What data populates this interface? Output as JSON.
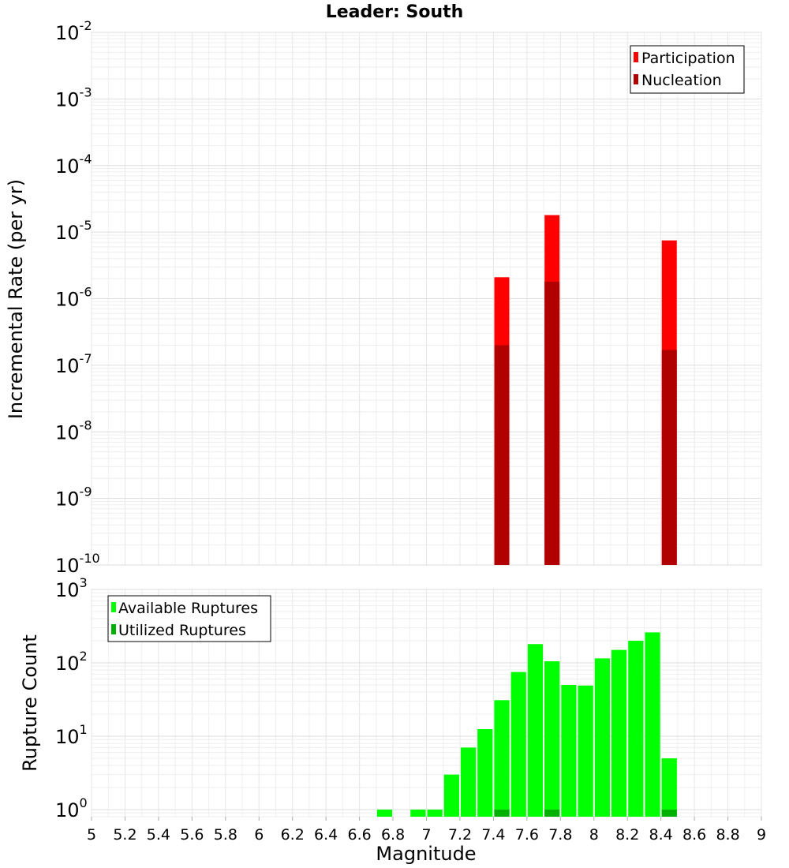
{
  "chart_data": [
    {
      "type": "bar",
      "title": "Leader: South",
      "xlabel": "",
      "ylabel": "Incremental Rate (per yr)",
      "yscale": "log",
      "ylim": [
        1e-10,
        0.01
      ],
      "xlim": [
        5,
        9
      ],
      "y_tick_labels": [
        {
          "base": "10",
          "exp": "-10"
        },
        {
          "base": "10",
          "exp": "-9"
        },
        {
          "base": "10",
          "exp": "-8"
        },
        {
          "base": "10",
          "exp": "-7"
        },
        {
          "base": "10",
          "exp": "-6"
        },
        {
          "base": "10",
          "exp": "-5"
        },
        {
          "base": "10",
          "exp": "-4"
        },
        {
          "base": "10",
          "exp": "-3"
        },
        {
          "base": "10",
          "exp": "-2"
        }
      ],
      "grid": true,
      "legend_position": "top-right",
      "series": [
        {
          "name": "Participation",
          "color": "#ff0000",
          "x": [
            7.45,
            7.75,
            8.45
          ],
          "values": [
            2.1e-06,
            1.8e-05,
            7.5e-06
          ]
        },
        {
          "name": "Nucleation",
          "color": "#b00000",
          "x": [
            7.45,
            7.75,
            8.45
          ],
          "values": [
            2e-07,
            1.8e-06,
            1.7e-07
          ]
        }
      ]
    },
    {
      "type": "bar",
      "xlabel": "Magnitude",
      "ylabel": "Rupture Count",
      "yscale": "log",
      "ylim": [
        0.8,
        1000
      ],
      "xlim": [
        5,
        9
      ],
      "x_tick_labels": [
        "5",
        "5.2",
        "5.4",
        "5.6",
        "5.8",
        "6",
        "6.2",
        "6.4",
        "6.6",
        "6.8",
        "7",
        "7.2",
        "7.4",
        "7.6",
        "7.8",
        "8",
        "8.2",
        "8.4",
        "8.6",
        "8.8",
        "9"
      ],
      "y_tick_labels": [
        {
          "base": "10",
          "exp": "0"
        },
        {
          "base": "10",
          "exp": "1"
        },
        {
          "base": "10",
          "exp": "2"
        },
        {
          "base": "10",
          "exp": "3"
        }
      ],
      "grid": true,
      "legend_position": "top-left",
      "series": [
        {
          "name": "Available Ruptures",
          "color": "#00ff00",
          "x": [
            6.75,
            6.95,
            7.05,
            7.15,
            7.25,
            7.35,
            7.45,
            7.55,
            7.65,
            7.75,
            7.85,
            7.95,
            8.05,
            8.15,
            8.25,
            8.35,
            8.45
          ],
          "values": [
            1,
            1,
            1,
            3,
            7,
            12.5,
            31,
            75,
            180,
            105,
            50,
            49,
            115,
            150,
            200,
            260,
            5
          ]
        },
        {
          "name": "Utilized Ruptures",
          "color": "#00b000",
          "x": [
            7.45,
            7.75,
            8.45
          ],
          "values": [
            1,
            1,
            1
          ]
        }
      ]
    }
  ]
}
